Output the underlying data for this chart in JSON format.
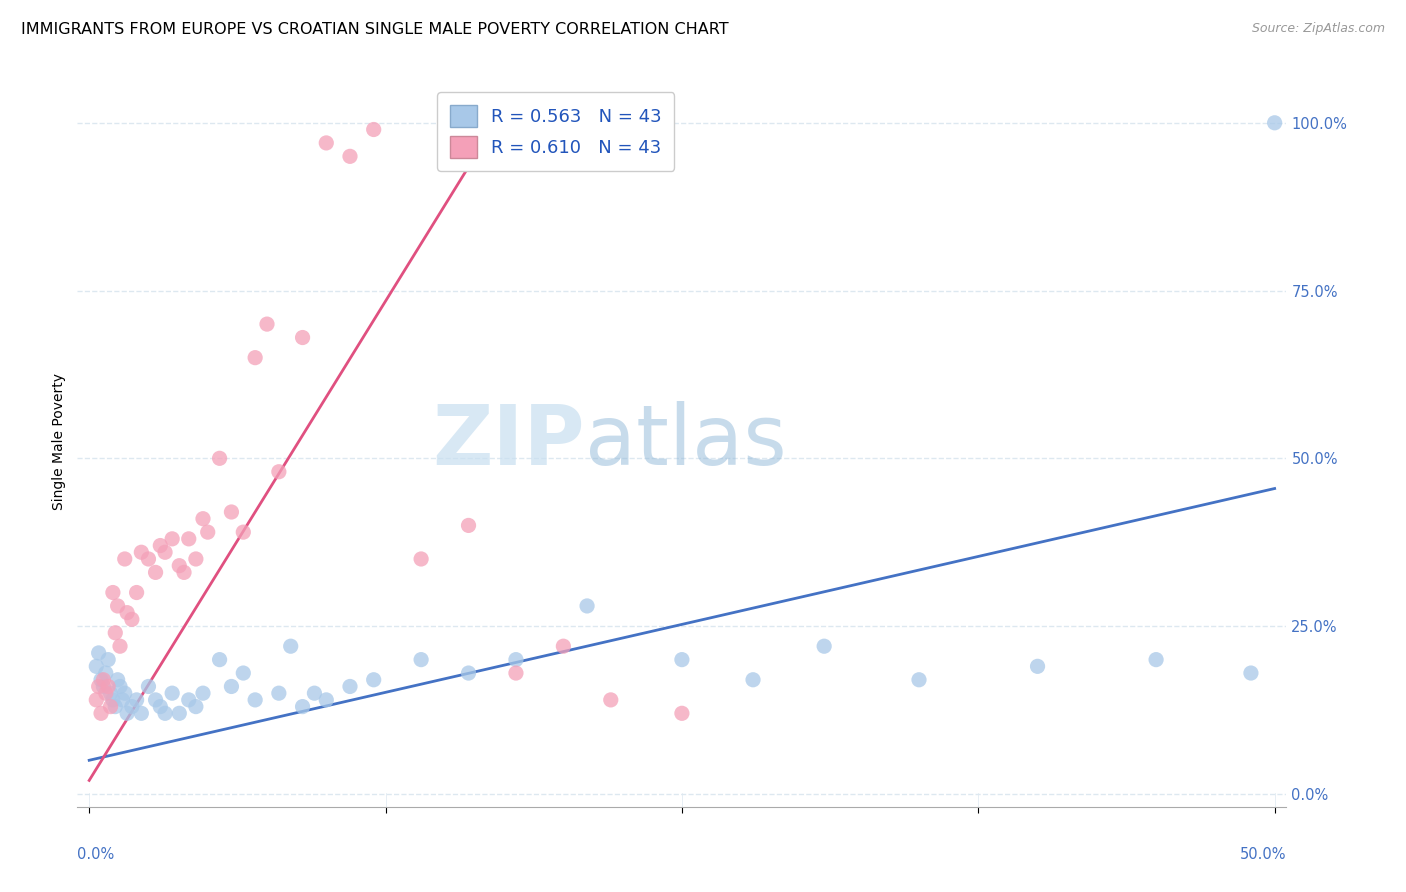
{
  "title": "IMMIGRANTS FROM EUROPE VS CROATIAN SINGLE MALE POVERTY CORRELATION CHART",
  "source": "Source: ZipAtlas.com",
  "ylabel": "Single Male Poverty",
  "ytick_labels": [
    "0.0%",
    "25.0%",
    "50.0%",
    "75.0%",
    "100.0%"
  ],
  "ytick_values": [
    0.0,
    0.25,
    0.5,
    0.75,
    1.0
  ],
  "xtick_labels": [
    "0.0%",
    "",
    "",
    "",
    "50.0%"
  ],
  "xtick_values": [
    0.0,
    0.125,
    0.25,
    0.375,
    0.5
  ],
  "xlim": [
    -0.005,
    0.505
  ],
  "ylim": [
    -0.02,
    1.07
  ],
  "blue_color": "#a8c8e8",
  "pink_color": "#f4a0b8",
  "line_blue": "#4472c4",
  "line_pink": "#e05080",
  "watermark_zip": "ZIP",
  "watermark_atlas": "atlas",
  "bg_color": "#ffffff",
  "grid_color": "#dde8f0",
  "title_fontsize": 11.5,
  "axis_label_fontsize": 10,
  "tick_fontsize": 10.5,
  "source_fontsize": 9,
  "blue_scatter_x": [
    0.003,
    0.004,
    0.005,
    0.006,
    0.007,
    0.008,
    0.009,
    0.01,
    0.011,
    0.012,
    0.013,
    0.014,
    0.015,
    0.016,
    0.018,
    0.02,
    0.022,
    0.025,
    0.028,
    0.03,
    0.032,
    0.035,
    0.038,
    0.042,
    0.045,
    0.048,
    0.055,
    0.06,
    0.065,
    0.07,
    0.08,
    0.085,
    0.09,
    0.095,
    0.1,
    0.11,
    0.12,
    0.14,
    0.16,
    0.18,
    0.21,
    0.25,
    0.28,
    0.31,
    0.35,
    0.4,
    0.45,
    0.49,
    0.5
  ],
  "blue_scatter_y": [
    0.19,
    0.21,
    0.17,
    0.16,
    0.18,
    0.2,
    0.15,
    0.14,
    0.13,
    0.17,
    0.16,
    0.14,
    0.15,
    0.12,
    0.13,
    0.14,
    0.12,
    0.16,
    0.14,
    0.13,
    0.12,
    0.15,
    0.12,
    0.14,
    0.13,
    0.15,
    0.2,
    0.16,
    0.18,
    0.14,
    0.15,
    0.22,
    0.13,
    0.15,
    0.14,
    0.16,
    0.17,
    0.2,
    0.18,
    0.2,
    0.28,
    0.2,
    0.17,
    0.22,
    0.17,
    0.19,
    0.2,
    0.18,
    1.0
  ],
  "pink_scatter_x": [
    0.003,
    0.004,
    0.005,
    0.006,
    0.007,
    0.008,
    0.009,
    0.01,
    0.011,
    0.012,
    0.013,
    0.015,
    0.016,
    0.018,
    0.02,
    0.022,
    0.025,
    0.028,
    0.03,
    0.032,
    0.035,
    0.038,
    0.04,
    0.042,
    0.045,
    0.048,
    0.05,
    0.055,
    0.06,
    0.065,
    0.07,
    0.075,
    0.08,
    0.09,
    0.1,
    0.11,
    0.12,
    0.14,
    0.16,
    0.18,
    0.2,
    0.22,
    0.25
  ],
  "pink_scatter_y": [
    0.14,
    0.16,
    0.12,
    0.17,
    0.15,
    0.16,
    0.13,
    0.3,
    0.24,
    0.28,
    0.22,
    0.35,
    0.27,
    0.26,
    0.3,
    0.36,
    0.35,
    0.33,
    0.37,
    0.36,
    0.38,
    0.34,
    0.33,
    0.38,
    0.35,
    0.41,
    0.39,
    0.5,
    0.42,
    0.39,
    0.65,
    0.7,
    0.48,
    0.68,
    0.97,
    0.95,
    0.99,
    0.35,
    0.4,
    0.18,
    0.22,
    0.14,
    0.12
  ],
  "blue_line_x": [
    0.0,
    0.5
  ],
  "blue_line_y": [
    0.05,
    0.455
  ],
  "pink_line_x": [
    0.0,
    0.175
  ],
  "pink_line_y": [
    0.02,
    1.02
  ],
  "legend1_color": "#a8c8e8",
  "legend2_color": "#f4a0b8",
  "legend_edge1": "#88aacc",
  "legend_edge2": "#cc8899"
}
